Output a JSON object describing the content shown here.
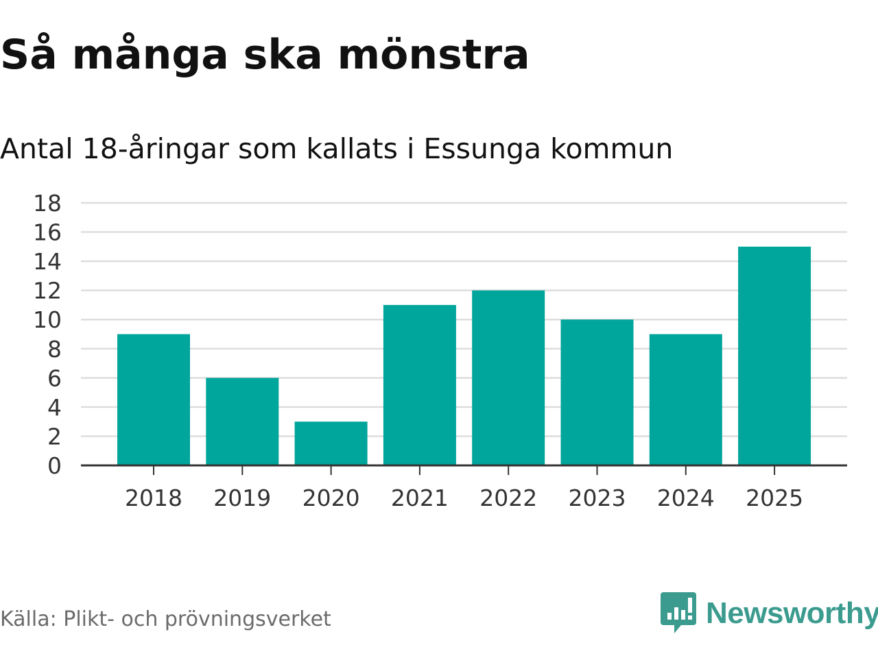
{
  "header": {
    "title": "Så många ska mönstra",
    "subtitle": "Antal 18-åringar som kallats i Essunga kommun"
  },
  "footer": {
    "source": "Källa: Plikt- och prövningsverket",
    "brand": "Newsworthy"
  },
  "colors": {
    "bar": "#00a59b",
    "grid": "#dddddd",
    "axis": "#333333",
    "brand": "#3b9b8e"
  },
  "chart_data": {
    "type": "bar",
    "title": "Så många ska mönstra",
    "subtitle": "Antal 18-åringar som kallats i Essunga kommun",
    "xlabel": "",
    "ylabel": "",
    "categories": [
      "2018",
      "2019",
      "2020",
      "2021",
      "2022",
      "2023",
      "2024",
      "2025"
    ],
    "values": [
      9,
      6,
      3,
      11,
      12,
      10,
      9,
      15
    ],
    "ylim": [
      0,
      18
    ],
    "yticks": [
      0,
      2,
      4,
      6,
      8,
      10,
      12,
      14,
      16,
      18
    ],
    "grid": true,
    "legend": "none"
  }
}
